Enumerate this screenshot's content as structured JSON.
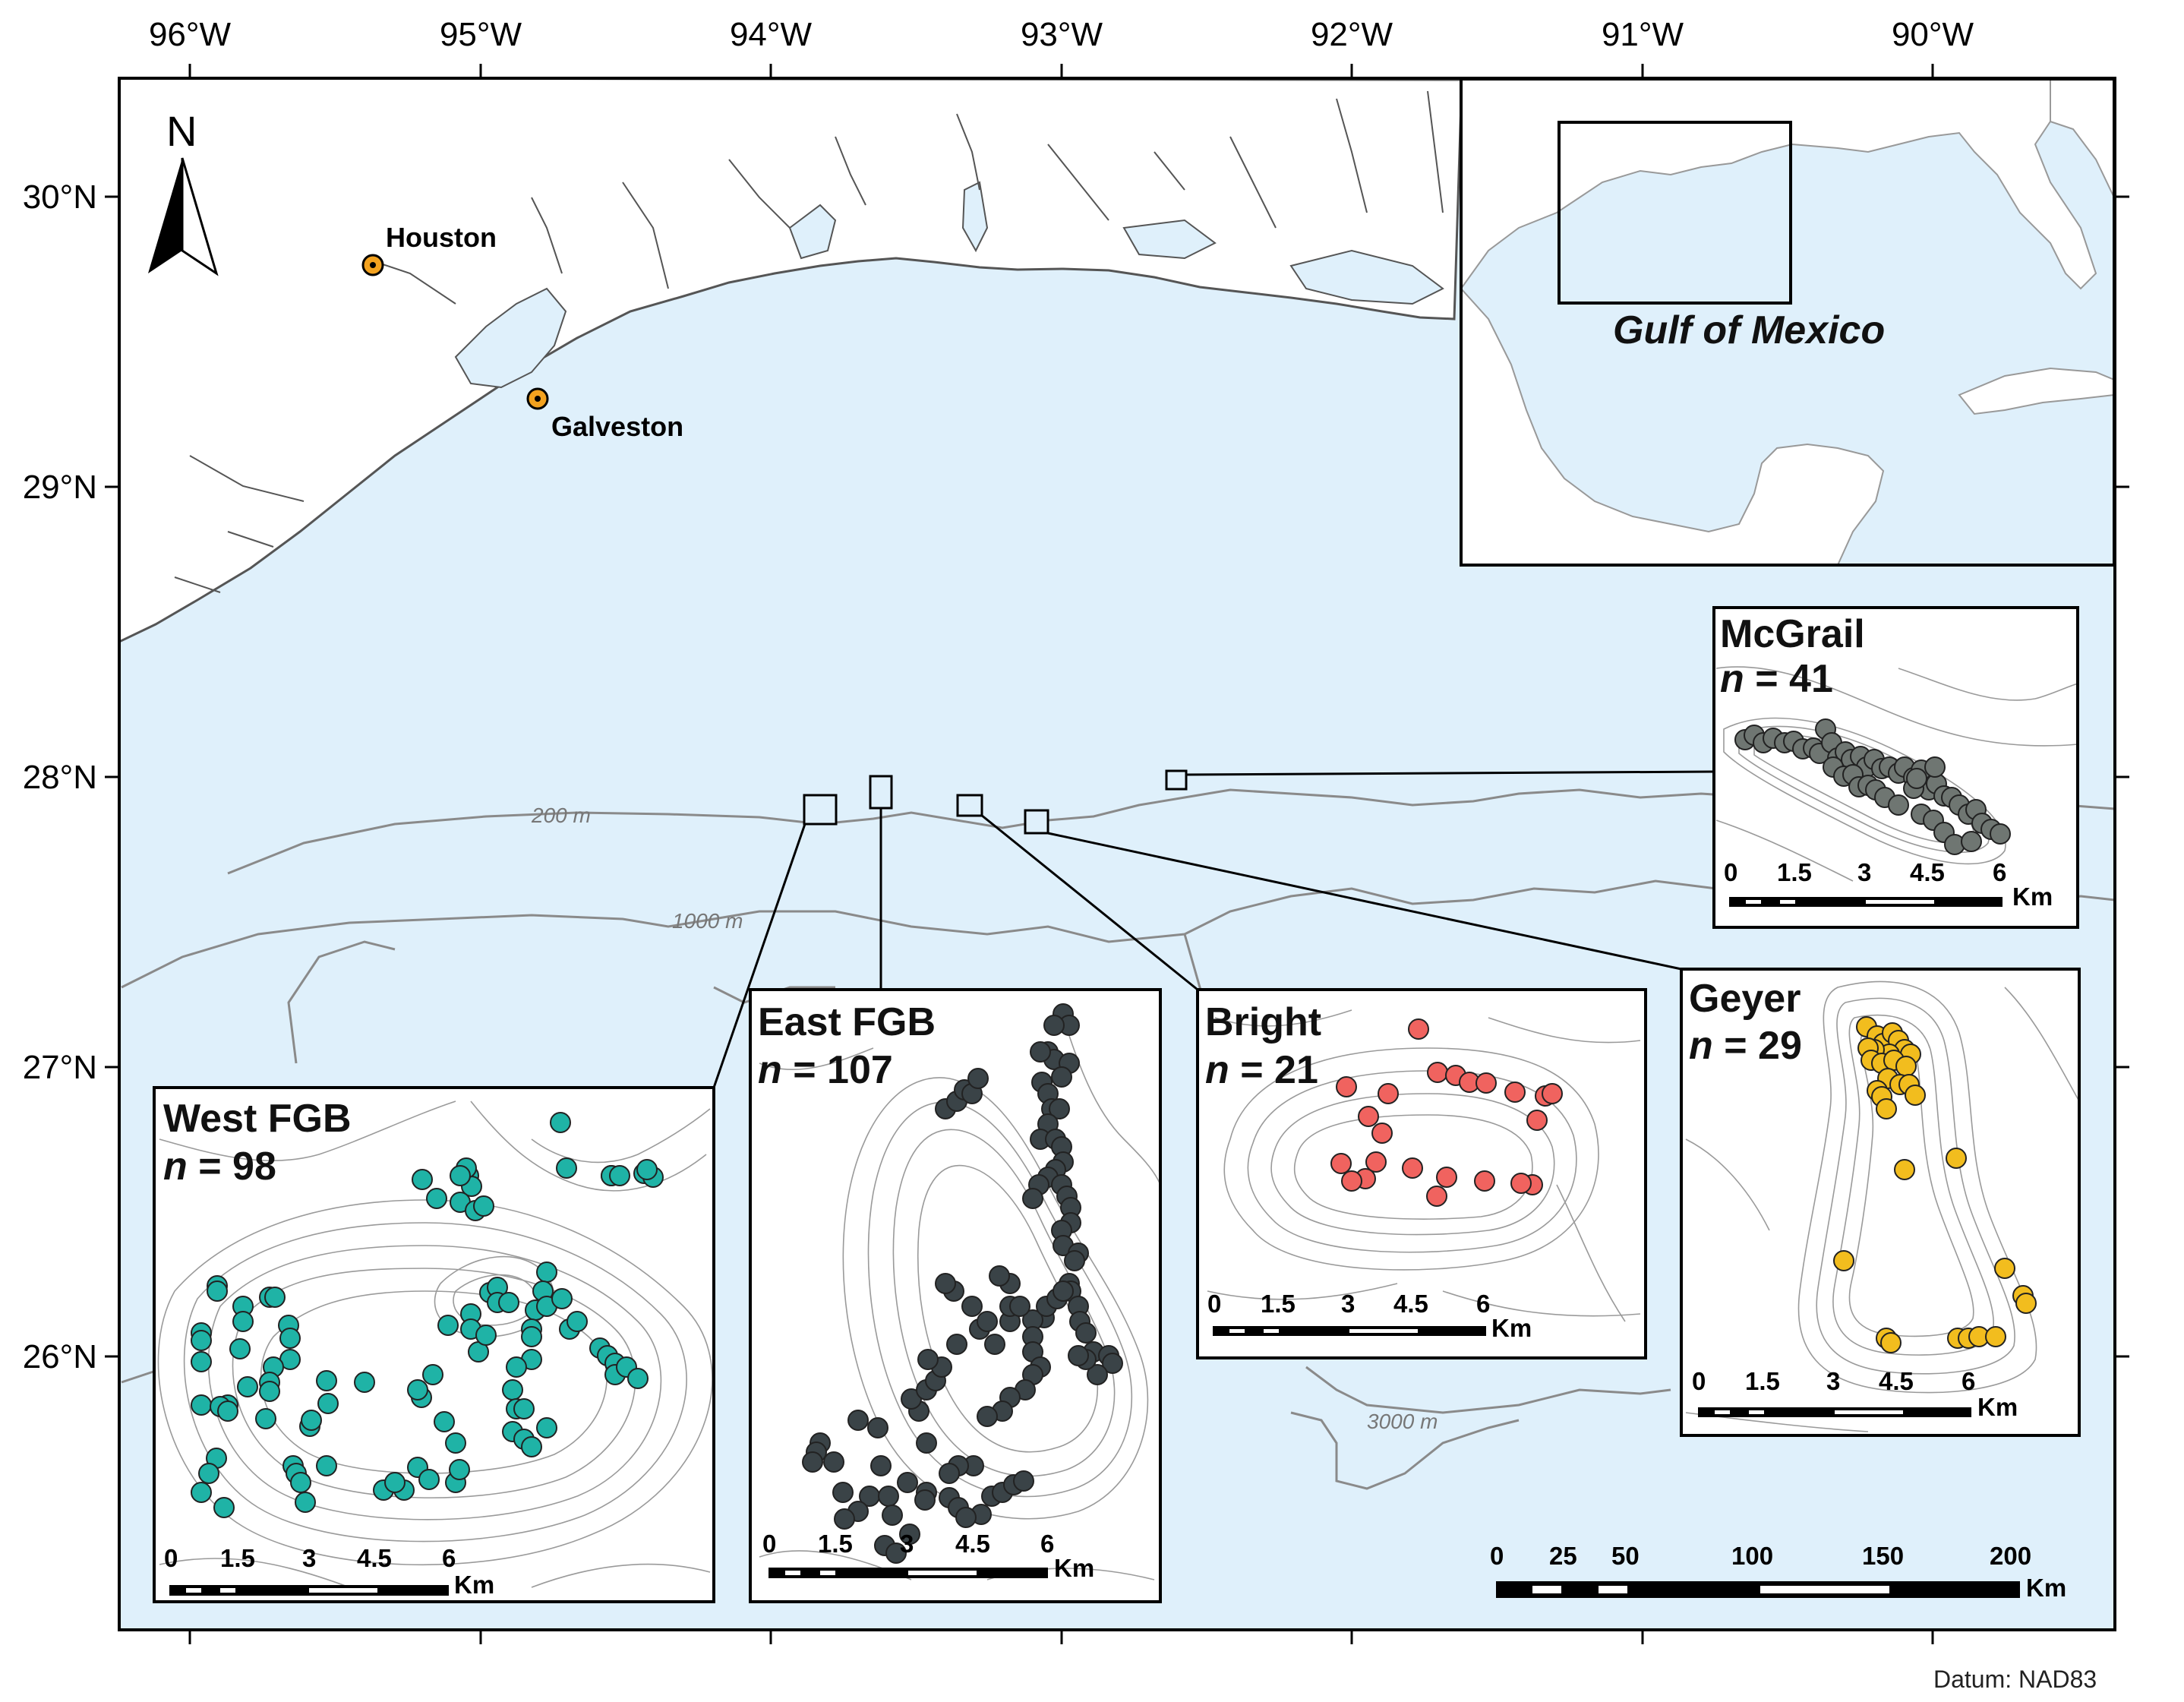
{
  "map": {
    "colors": {
      "ocean": "#dff0fb",
      "land": "#ffffff",
      "coast": "#555555",
      "contour": "#8a8a8a",
      "west_fgb": "#1fb3a6",
      "east_fgb": "#3a4347",
      "bright": "#f0635f",
      "mcgrail": "#6f7672",
      "geyer": "#f2bd1e",
      "city_marker": "#f3a21f"
    },
    "longitude_labels": [
      "96°W",
      "95°W",
      "94°W",
      "93°W",
      "92°W",
      "91°W",
      "90°W"
    ],
    "latitude_labels": [
      "30°N",
      "29°N",
      "28°N",
      "27°N",
      "26°N"
    ],
    "north_arrow": {
      "label": "N",
      "icon": "north-arrow-icon"
    },
    "cities": [
      {
        "name": "Houston"
      },
      {
        "name": "Galveston"
      }
    ],
    "contour_labels": [
      "200 m",
      "1000 m",
      "3000 m"
    ],
    "overview_inset": {
      "label": "Gulf of Mexico"
    },
    "main_scale": {
      "ticks": [
        "0",
        "25",
        "50",
        "100",
        "150",
        "200"
      ],
      "unit": "Km"
    },
    "datum": "Datum: NAD83",
    "sites": [
      {
        "id": "west_fgb",
        "name": "West FGB",
        "n_prefix": "n",
        "n_value": "= 98",
        "count": 98,
        "scale_ticks": [
          "0",
          "1.5",
          "3",
          "4.5",
          "6"
        ],
        "scale_unit": "Km"
      },
      {
        "id": "east_fgb",
        "name": "East FGB",
        "n_prefix": "n",
        "n_value": "= 107",
        "count": 107,
        "scale_ticks": [
          "0",
          "1.5",
          "3",
          "4.5",
          "6"
        ],
        "scale_unit": "Km"
      },
      {
        "id": "bright",
        "name": "Bright",
        "n_prefix": "n",
        "n_value": "= 21",
        "count": 21,
        "scale_ticks": [
          "0",
          "1.5",
          "3",
          "4.5",
          "6"
        ],
        "scale_unit": "Km"
      },
      {
        "id": "mcgrail",
        "name": "McGrail",
        "n_prefix": "n",
        "n_value": "= 41",
        "count": 41,
        "scale_ticks": [
          "0",
          "1.5",
          "3",
          "4.5",
          "6"
        ],
        "scale_unit": "Km"
      },
      {
        "id": "geyer",
        "name": "Geyer",
        "n_prefix": "n",
        "n_value": "= 29",
        "count": 29,
        "scale_ticks": [
          "0",
          "1.5",
          "3",
          "4.5",
          "6"
        ],
        "scale_unit": "Km"
      }
    ]
  }
}
